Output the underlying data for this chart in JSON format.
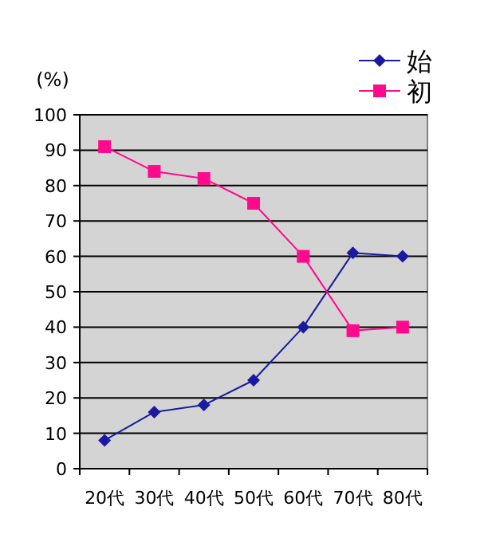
{
  "chart_data": {
    "type": "line",
    "ylabel": "(%)",
    "categories": [
      "20代",
      "30代",
      "40代",
      "50代",
      "60代",
      "70代",
      "80代"
    ],
    "series": [
      {
        "name": "始",
        "color": "#1a1aa0",
        "marker": "diamond",
        "values": [
          8,
          16,
          18,
          25,
          40,
          61,
          60
        ]
      },
      {
        "name": "初",
        "color": "#ff0a8c",
        "marker": "square",
        "values": [
          91,
          84,
          82,
          75,
          60,
          39,
          40
        ]
      }
    ],
    "ylim": [
      0,
      100
    ],
    "yticks": [
      0,
      10,
      20,
      30,
      40,
      50,
      60,
      70,
      80,
      90,
      100
    ],
    "grid": "y",
    "legend": "top right"
  }
}
